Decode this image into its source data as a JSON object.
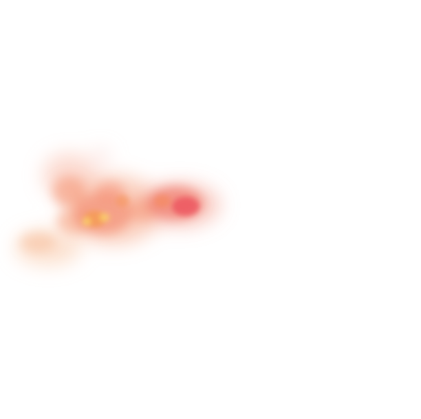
{
  "image": {
    "background_color": "#ffffff",
    "palette": {
      "pale_peach": "#f9c8a8",
      "peach": "#f6a585",
      "coral": "#f07a6c",
      "red": "#ec4f5c",
      "orange": "#f59a52",
      "yellow": "#fbcf6a"
    }
  }
}
